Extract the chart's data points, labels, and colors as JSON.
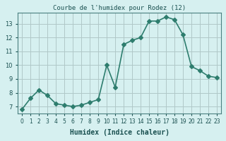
{
  "x": [
    0,
    1,
    2,
    3,
    4,
    5,
    6,
    7,
    8,
    9,
    10,
    11,
    12,
    13,
    14,
    15,
    16,
    17,
    18,
    19,
    20,
    21,
    22,
    23
  ],
  "y": [
    6.8,
    7.6,
    8.2,
    7.8,
    7.2,
    7.1,
    7.0,
    7.1,
    7.3,
    7.5,
    10.0,
    8.4,
    11.5,
    11.8,
    12.0,
    13.2,
    13.2,
    13.5,
    13.3,
    12.2,
    9.9,
    9.6,
    9.2,
    9.1
  ],
  "title": "Courbe de l'humidex pour Rodez (12)",
  "xlabel": "Humidex (Indice chaleur)",
  "ylabel": "",
  "xlim": [
    -0.5,
    23.5
  ],
  "ylim": [
    6.5,
    13.8
  ],
  "yticks": [
    7,
    8,
    9,
    10,
    11,
    12,
    13
  ],
  "xticks": [
    0,
    1,
    2,
    3,
    4,
    5,
    6,
    7,
    8,
    9,
    10,
    11,
    12,
    13,
    14,
    15,
    16,
    17,
    18,
    19,
    20,
    21,
    22,
    23
  ],
  "line_color": "#2e7d6e",
  "marker": "D",
  "marker_size": 3,
  "bg_color": "#d6f0f0",
  "grid_color": "#b0c8c8",
  "title_color": "#1a5050",
  "label_color": "#1a5050",
  "tick_color": "#1a5050",
  "axis_color": "#4a8080"
}
